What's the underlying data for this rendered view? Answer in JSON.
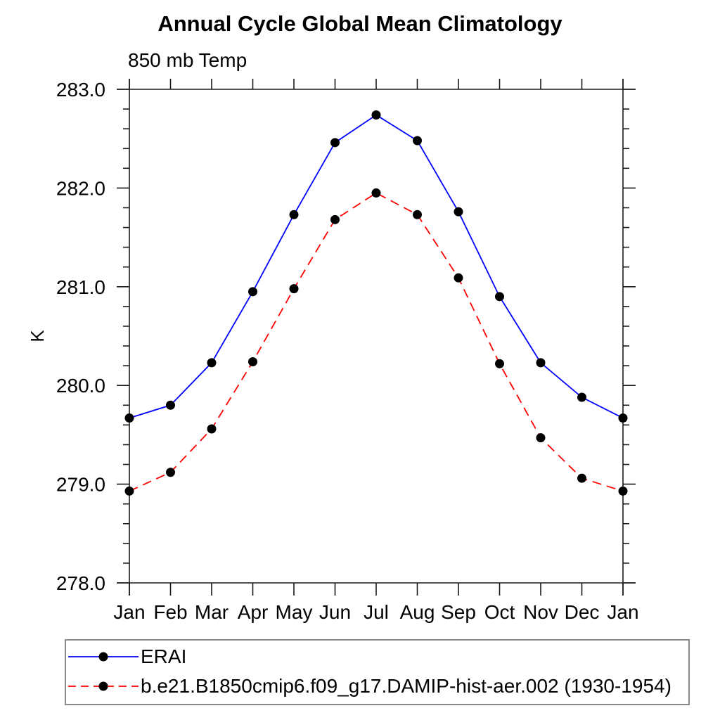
{
  "chart_data": {
    "type": "line",
    "title": "Annual Cycle Global Mean Climatology",
    "subtitle": "850 mb Temp",
    "ylabel": "K",
    "xlabel": "",
    "x_categories": [
      "Jan",
      "Feb",
      "Mar",
      "Apr",
      "May",
      "Jun",
      "Jul",
      "Aug",
      "Sep",
      "Oct",
      "Nov",
      "Dec",
      "Jan"
    ],
    "ylim": [
      278.0,
      283.0
    ],
    "y_major_step": 1.0,
    "y_minor_step": 0.2,
    "y_tick_labels": [
      "278.0",
      "279.0",
      "280.0",
      "281.0",
      "282.0",
      "283.0"
    ],
    "grid": false,
    "legend_position": "bottom",
    "axis_color": "#1a1a1a",
    "marker_style": "filled-circle",
    "series": [
      {
        "name": "ERAI",
        "line_color": "#0000ff",
        "line_style": "solid",
        "marker": "filled-circle",
        "marker_color": "#000000",
        "values": [
          279.67,
          279.8,
          280.23,
          280.95,
          281.73,
          282.46,
          282.74,
          282.48,
          281.76,
          280.9,
          280.23,
          279.88,
          279.67
        ]
      },
      {
        "name": "b.e21.B1850cmip6.f09_g17.DAMIP-hist-aer.002 (1930-1954)",
        "line_color": "#ff0000",
        "line_style": "dashed",
        "marker": "filled-circle",
        "marker_color": "#000000",
        "values": [
          278.93,
          279.12,
          279.56,
          280.24,
          280.98,
          281.68,
          281.95,
          281.73,
          281.09,
          280.22,
          279.47,
          279.06,
          278.93
        ]
      }
    ]
  }
}
